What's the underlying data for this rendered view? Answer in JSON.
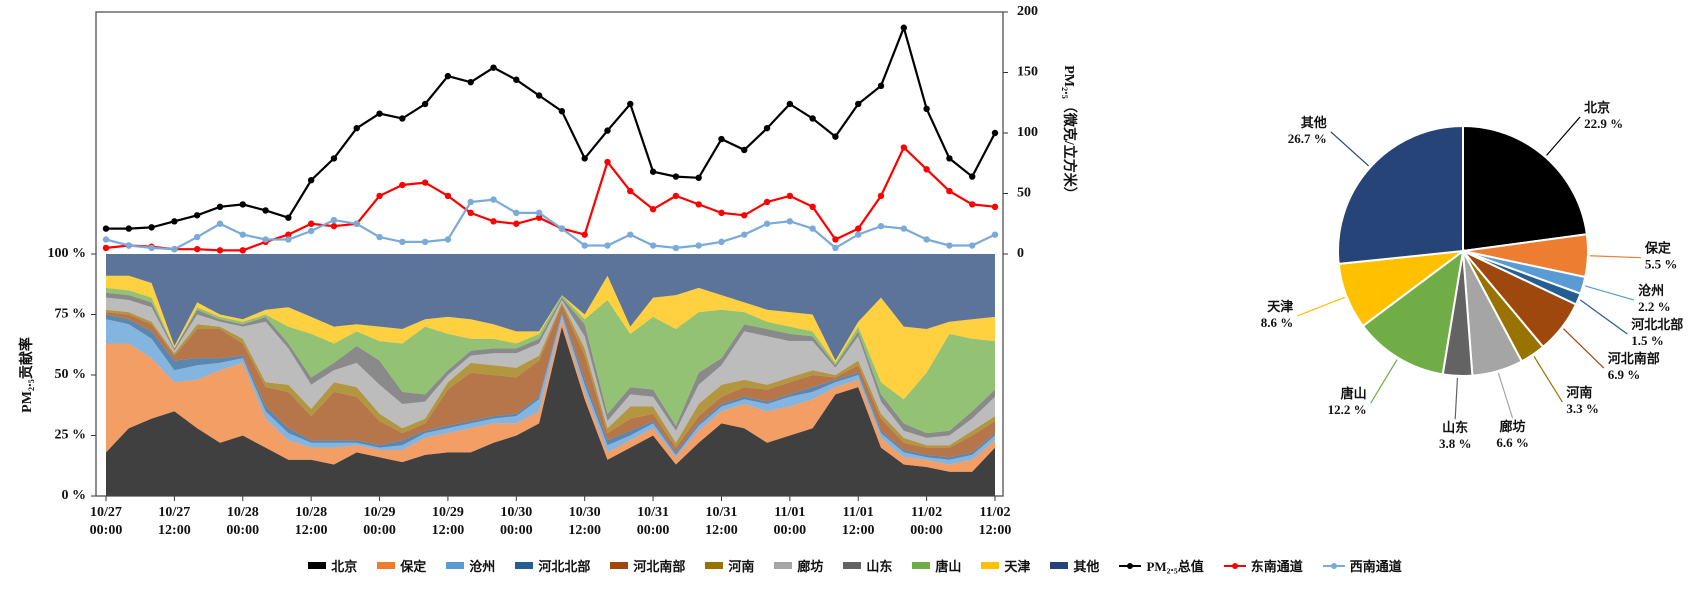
{
  "chart_data": [
    {
      "type": "line",
      "ylabel": "PM₂.₅（微克/立方米）",
      "yaxis_side": "right",
      "x": [
        "10/27 00:00",
        "10/27 04:00",
        "10/27 08:00",
        "10/27 12:00",
        "10/27 16:00",
        "10/27 20:00",
        "10/28 00:00",
        "10/28 04:00",
        "10/28 08:00",
        "10/28 12:00",
        "10/28 16:00",
        "10/28 20:00",
        "10/29 00:00",
        "10/29 04:00",
        "10/29 08:00",
        "10/29 12:00",
        "10/29 16:00",
        "10/29 20:00",
        "10/30 00:00",
        "10/30 04:00",
        "10/30 08:00",
        "10/30 12:00",
        "10/30 16:00",
        "10/30 20:00",
        "10/31 00:00",
        "10/31 04:00",
        "10/31 08:00",
        "10/31 12:00",
        "10/31 16:00",
        "10/31 20:00",
        "11/01 00:00",
        "11/01 04:00",
        "11/01 08:00",
        "11/01 12:00",
        "11/01 16:00",
        "11/01 20:00",
        "11/02 00:00",
        "11/02 04:00",
        "11/02 08:00",
        "11/02 12:00"
      ],
      "ylim": [
        0,
        200
      ],
      "yticks": [
        0,
        50,
        100,
        150,
        200
      ],
      "series": [
        {
          "name": "PM₂.₅总值",
          "color": "#000000",
          "values": [
            21,
            21,
            22,
            27,
            32,
            39,
            41,
            36,
            30,
            61,
            79,
            104,
            116,
            112,
            124,
            147,
            142,
            154,
            144,
            131,
            118,
            79,
            102,
            124,
            68,
            64,
            63,
            95,
            86,
            104,
            124,
            112,
            97,
            124,
            139,
            187,
            120,
            79,
            64,
            100
          ]
        },
        {
          "name": "东南通道",
          "color": "#ff0000",
          "values": [
            5,
            7,
            6,
            4,
            4,
            3,
            3,
            10,
            16,
            25,
            23,
            25,
            48,
            57,
            59,
            48,
            34,
            27,
            25,
            30,
            21,
            16,
            76,
            52,
            37,
            48,
            41,
            34,
            32,
            43,
            48,
            39,
            12,
            21,
            48,
            88,
            70,
            52,
            41,
            39
          ]
        },
        {
          "name": "西南通道",
          "color": "#7aaad8",
          "values": [
            12,
            7,
            5,
            4,
            14,
            25,
            16,
            12,
            12,
            19,
            28,
            25,
            14,
            10,
            10,
            12,
            43,
            45,
            34,
            34,
            21,
            7,
            7,
            16,
            7,
            5,
            7,
            10,
            16,
            25,
            27,
            21,
            5,
            16,
            23,
            21,
            12,
            7,
            7,
            16
          ]
        }
      ]
    },
    {
      "type": "stacked_area",
      "ylabel": "PM₂.₅贡献率",
      "x": [
        "10/27 00:00",
        "10/27 04:00",
        "10/27 08:00",
        "10/27 12:00",
        "10/27 16:00",
        "10/27 20:00",
        "10/28 00:00",
        "10/28 04:00",
        "10/28 08:00",
        "10/28 12:00",
        "10/28 16:00",
        "10/28 20:00",
        "10/29 00:00",
        "10/29 04:00",
        "10/29 08:00",
        "10/29 12:00",
        "10/29 16:00",
        "10/29 20:00",
        "10/30 00:00",
        "10/30 04:00",
        "10/30 08:00",
        "10/30 12:00",
        "10/30 16:00",
        "10/30 20:00",
        "10/31 00:00",
        "10/31 04:00",
        "10/31 08:00",
        "10/31 12:00",
        "10/31 16:00",
        "10/31 20:00",
        "11/01 00:00",
        "11/01 04:00",
        "11/01 08:00",
        "11/01 12:00",
        "11/01 16:00",
        "11/01 20:00",
        "11/02 00:00",
        "11/02 04:00",
        "11/02 08:00",
        "11/02 12:00"
      ],
      "xticks": [
        "10/27 00:00",
        "10/27 12:00",
        "10/28 00:00",
        "10/28 12:00",
        "10/29 00:00",
        "10/29 12:00",
        "10/30 00:00",
        "10/30 12:00",
        "10/31 00:00",
        "10/31 12:00",
        "11/01 00:00",
        "11/01 12:00",
        "11/02 00:00",
        "11/02 12:00"
      ],
      "ylim": [
        0,
        100
      ],
      "yticks": [
        {
          "value": 0,
          "label": "0 %"
        },
        {
          "value": 25,
          "label": "25 %"
        },
        {
          "value": 50,
          "label": "50 %"
        },
        {
          "value": 75,
          "label": "75 %"
        },
        {
          "value": 100,
          "label": "100 %"
        }
      ],
      "series": [
        {
          "name": "北京",
          "color": "#000000",
          "values": [
            18,
            28,
            32,
            35,
            28,
            22,
            25,
            20,
            15,
            15,
            13,
            18,
            16,
            14,
            17,
            18,
            18,
            22,
            25,
            30,
            70,
            40,
            15,
            20,
            25,
            13,
            22,
            30,
            28,
            22,
            25,
            28,
            42,
            45,
            20,
            13,
            12,
            10,
            10,
            20
          ]
        },
        {
          "name": "保定",
          "color": "#ed7d31",
          "values": [
            45,
            35,
            25,
            12,
            20,
            30,
            30,
            12,
            8,
            5,
            7,
            3,
            3,
            5,
            7,
            8,
            10,
            8,
            5,
            5,
            3,
            3,
            3,
            3,
            3,
            3,
            5,
            5,
            10,
            13,
            12,
            12,
            3,
            3,
            4,
            3,
            3,
            3,
            5,
            3
          ]
        },
        {
          "name": "沧州",
          "color": "#5b9bd5",
          "values": [
            10,
            8,
            8,
            5,
            6,
            3,
            2,
            3,
            3,
            2,
            2,
            1,
            1,
            2,
            2,
            2,
            2,
            2,
            3,
            5,
            2,
            3,
            3,
            2,
            2,
            1,
            2,
            2,
            2,
            3,
            4,
            3,
            2,
            2,
            2,
            2,
            1,
            2,
            2,
            2
          ]
        },
        {
          "name": "河北北部",
          "color": "#255e91",
          "values": [
            2,
            2,
            3,
            4,
            3,
            2,
            1,
            2,
            2,
            1,
            1,
            1,
            1,
            2,
            1,
            1,
            1,
            1,
            1,
            1,
            1,
            2,
            2,
            2,
            1,
            1,
            1,
            1,
            1,
            1,
            1,
            2,
            1,
            1,
            1,
            1,
            1,
            1,
            1,
            1
          ]
        },
        {
          "name": "河北南部",
          "color": "#9e480e",
          "values": [
            1,
            2,
            3,
            2,
            12,
            12,
            5,
            8,
            15,
            10,
            20,
            18,
            10,
            3,
            3,
            15,
            20,
            17,
            15,
            15,
            3,
            10,
            3,
            5,
            3,
            2,
            3,
            3,
            4,
            5,
            5,
            5,
            1,
            3,
            5,
            3,
            3,
            4,
            7,
            5
          ]
        },
        {
          "name": "河南",
          "color": "#997300",
          "values": [
            1,
            1,
            1,
            1,
            2,
            1,
            2,
            2,
            3,
            3,
            4,
            4,
            3,
            2,
            2,
            3,
            4,
            4,
            4,
            2,
            1,
            3,
            2,
            5,
            3,
            2,
            5,
            5,
            3,
            2,
            2,
            2,
            1,
            2,
            2,
            2,
            1,
            1,
            2,
            2
          ]
        },
        {
          "name": "廊坊",
          "color": "#a5a5a5",
          "values": [
            5,
            5,
            6,
            1,
            4,
            2,
            5,
            25,
            15,
            10,
            5,
            10,
            12,
            10,
            7,
            3,
            3,
            5,
            6,
            5,
            1,
            5,
            3,
            5,
            4,
            5,
            8,
            8,
            20,
            20,
            15,
            12,
            3,
            10,
            5,
            3,
            3,
            4,
            5,
            8
          ]
        },
        {
          "name": "山东",
          "color": "#636363",
          "values": [
            2,
            2,
            2,
            1,
            2,
            1,
            1,
            2,
            2,
            3,
            3,
            7,
            10,
            5,
            3,
            2,
            2,
            2,
            2,
            2,
            1,
            5,
            3,
            3,
            3,
            2,
            5,
            3,
            3,
            3,
            3,
            2,
            1,
            2,
            3,
            3,
            2,
            2,
            3,
            3
          ]
        },
        {
          "name": "唐山",
          "color": "#70ad47",
          "values": [
            2,
            2,
            2,
            0,
            1,
            1,
            1,
            1,
            7,
            18,
            8,
            6,
            8,
            20,
            28,
            15,
            5,
            4,
            2,
            2,
            1,
            2,
            47,
            22,
            30,
            40,
            25,
            20,
            5,
            3,
            3,
            2,
            1,
            2,
            5,
            10,
            25,
            40,
            30,
            20
          ]
        },
        {
          "name": "天津",
          "color": "#ffc000",
          "values": [
            5,
            6,
            6,
            1,
            2,
            1,
            1,
            2,
            8,
            7,
            7,
            3,
            6,
            6,
            3,
            7,
            8,
            6,
            5,
            1,
            0,
            2,
            10,
            3,
            8,
            14,
            10,
            6,
            4,
            5,
            6,
            7,
            1,
            2,
            35,
            30,
            18,
            5,
            8,
            10
          ]
        },
        {
          "name": "其他",
          "color": "#264478",
          "values": [
            9,
            9,
            12,
            38,
            20,
            25,
            27,
            23,
            22,
            26,
            30,
            29,
            30,
            31,
            27,
            26,
            27,
            29,
            32,
            32,
            17,
            25,
            9,
            30,
            18,
            17,
            14,
            17,
            20,
            23,
            24,
            25,
            44,
            28,
            18,
            30,
            31,
            28,
            27,
            26
          ]
        }
      ]
    },
    {
      "type": "pie",
      "categories": [
        "北京",
        "保定",
        "沧州",
        "河北北部",
        "河北南部",
        "河南",
        "廊坊",
        "山东",
        "唐山",
        "天津",
        "其他"
      ],
      "values": [
        22.9,
        5.5,
        2.2,
        1.5,
        6.9,
        3.3,
        6.6,
        3.8,
        12.2,
        8.6,
        26.7
      ],
      "value_labels": [
        "22.9 %",
        "5.5 %",
        "2.2 %",
        "1.5 %",
        "6.9 %",
        "3.3 %",
        "6.6 %",
        "3.8 %",
        "12.2 %",
        "8.6 %",
        "26.7 %"
      ],
      "colors": [
        "#000000",
        "#ed7d31",
        "#5b9bd5",
        "#255e91",
        "#9e480e",
        "#997300",
        "#a5a5a5",
        "#636363",
        "#70ad47",
        "#ffc000",
        "#264478"
      ]
    }
  ]
}
